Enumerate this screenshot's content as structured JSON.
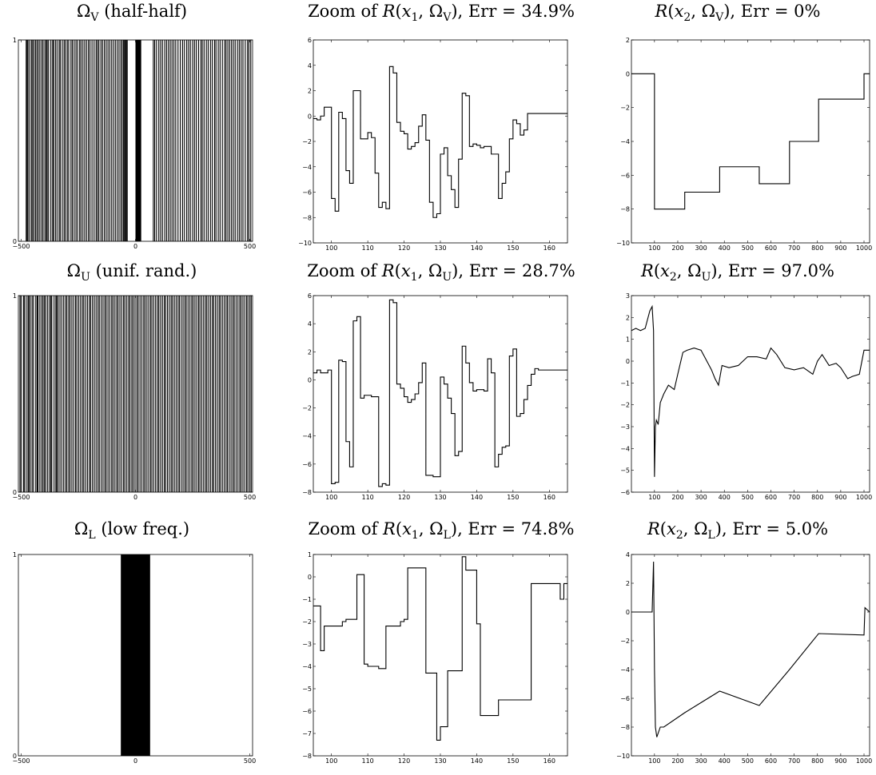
{
  "figure": {
    "titles": [
      [
        "Ω",
        "V",
        "(half-half)"
      ],
      [
        "Zoom of R(x",
        "1",
        ", Ω",
        "V",
        "), Err = 34.9%"
      ],
      [
        "R(x",
        "2",
        ", Ω",
        "V",
        "), Err = 0%"
      ],
      [
        "Ω",
        "U",
        "(unif. rand.)"
      ],
      [
        "Zoom of R(x",
        "1",
        ", Ω",
        "U",
        "), Err = 28.7%"
      ],
      [
        "R(x",
        "2",
        ", Ω",
        "U",
        "), Err = 97.0%"
      ],
      [
        "Ω",
        "L",
        "(low freq.)"
      ],
      [
        "Zoom of R(x",
        "1",
        ", Ω",
        "L",
        "), Err = 74.8%"
      ],
      [
        "R(x",
        "2",
        ", Ω",
        "L",
        "), Err = 5.0%"
      ]
    ]
  },
  "chart_data": [
    {
      "id": "mask_V",
      "type": "line",
      "style": "mask",
      "title": "ΩV (half-half)",
      "xlim": [
        -512,
        512
      ],
      "ylim": [
        0,
        1
      ],
      "xticks": [
        -500,
        0,
        500
      ],
      "yticks": [
        0,
        1
      ],
      "mask_lines": [
        -478,
        -474,
        -470,
        -463,
        -455,
        -450,
        -444,
        -437,
        -431,
        -425,
        -418,
        -410,
        -404,
        -396,
        -390,
        -386,
        -380,
        -370,
        -362,
        -358,
        -350,
        -343,
        -334,
        -329,
        -320,
        -312,
        -306,
        -298,
        -292,
        -282,
        -276,
        -268,
        -260,
        -253,
        -244,
        -238,
        -230,
        -222,
        -214,
        -206,
        -199,
        -190,
        -181,
        -172,
        -166,
        -160,
        -151,
        -144,
        -136,
        -128,
        -120,
        -112,
        -104,
        -96,
        -88,
        -80,
        -72,
        -64,
        -58,
        -52,
        -48,
        -44,
        -40,
        -36,
        78,
        84,
        92,
        102,
        110,
        118,
        128,
        136,
        144,
        152,
        160,
        168,
        176,
        186,
        196,
        206,
        214,
        224,
        232,
        240,
        250,
        258,
        266,
        276,
        286,
        292,
        300,
        310,
        318,
        328,
        336,
        346,
        352,
        362,
        370,
        380,
        390,
        396,
        404,
        412,
        420,
        428,
        436,
        446,
        454,
        462,
        470,
        480,
        490,
        496,
        504
      ],
      "mask_band": [
        0,
        25
      ]
    },
    {
      "id": "zoom_V",
      "type": "line",
      "style": "step",
      "title": "Zoom of R(x1, ΩV), Err = 34.9%",
      "xlim": [
        95,
        165
      ],
      "ylim": [
        -10,
        6
      ],
      "xticks": [
        100,
        110,
        120,
        130,
        140,
        150,
        160
      ],
      "yticks": [
        -10,
        -8,
        -6,
        -4,
        -2,
        0,
        2,
        4,
        6
      ],
      "x": [
        95,
        96,
        97,
        98,
        100,
        101,
        102,
        103,
        104,
        105,
        106,
        107,
        108,
        110,
        111,
        112,
        113,
        114,
        115,
        116,
        117,
        118,
        119,
        120,
        121,
        122,
        123,
        124,
        125,
        126,
        127,
        128,
        129,
        130,
        131,
        132,
        133,
        134,
        135,
        136,
        137,
        138,
        139,
        140,
        141,
        142,
        144,
        146,
        147,
        148,
        149,
        150,
        151,
        152,
        153,
        154,
        155,
        156,
        158,
        160,
        165
      ],
      "y": [
        -0.2,
        -0.3,
        0.0,
        0.7,
        -6.5,
        -7.5,
        0.3,
        -0.2,
        -4.3,
        -5.3,
        2.0,
        2.0,
        -1.8,
        -1.3,
        -1.7,
        -4.5,
        -7.2,
        -6.8,
        -7.3,
        3.9,
        3.4,
        -0.5,
        -1.2,
        -1.4,
        -2.6,
        -2.4,
        -2.1,
        -0.8,
        0.1,
        -1.9,
        -6.8,
        -8.0,
        -7.7,
        -3.0,
        -2.5,
        -4.7,
        -5.8,
        -7.2,
        -3.4,
        1.8,
        1.6,
        -2.4,
        -2.2,
        -2.3,
        -2.5,
        -2.4,
        -3.0,
        -6.5,
        -5.3,
        -4.4,
        -1.8,
        -0.3,
        -0.6,
        -1.5,
        -1.1,
        0.2,
        0.2,
        0.2,
        0.2,
        0.2,
        0.2
      ]
    },
    {
      "id": "full_V",
      "type": "line",
      "style": "step",
      "title": "R(x2, ΩV), Err = 0%",
      "xlim": [
        1,
        1024
      ],
      "ylim": [
        -10,
        2
      ],
      "xticks": [
        100,
        200,
        300,
        400,
        500,
        600,
        700,
        800,
        900,
        1000
      ],
      "yticks": [
        -10,
        -8,
        -6,
        -4,
        -2,
        0,
        2
      ],
      "x": [
        1,
        100,
        230,
        380,
        550,
        680,
        805,
        1000,
        1024
      ],
      "y": [
        0,
        -8,
        -7,
        -5.5,
        -6.5,
        -4,
        -1.5,
        0,
        0
      ]
    },
    {
      "id": "mask_U",
      "type": "line",
      "style": "mask",
      "title": "ΩU (unif. rand.)",
      "xlim": [
        -512,
        512
      ],
      "ylim": [
        0,
        1
      ],
      "xticks": [
        -500,
        0,
        500
      ],
      "yticks": [
        0,
        1
      ],
      "mask_lines": [
        -505,
        -500,
        -490,
        -486,
        -478,
        -470,
        -466,
        -460,
        -452,
        -446,
        -436,
        -430,
        -426,
        -418,
        -410,
        -404,
        -398,
        -392,
        -384,
        -376,
        -370,
        -366,
        -356,
        -348,
        -344,
        -338,
        -330,
        -322,
        -314,
        -306,
        -300,
        -292,
        -286,
        -278,
        -270,
        -262,
        -256,
        -248,
        -240,
        -232,
        -226,
        -218,
        -210,
        -202,
        -196,
        -188,
        -180,
        -172,
        -164,
        -158,
        -150,
        -142,
        -134,
        -128,
        -120,
        -112,
        -104,
        -98,
        -90,
        -82,
        -76,
        -68,
        -60,
        -52,
        -46,
        -38,
        -30,
        -24,
        -16,
        -10,
        -2,
        6,
        12,
        20,
        28,
        36,
        42,
        50,
        58,
        66,
        72,
        80,
        88,
        96,
        102,
        110,
        118,
        126,
        132,
        140,
        148,
        156,
        162,
        170,
        178,
        186,
        192,
        200,
        208,
        216,
        222,
        230,
        238,
        246,
        252,
        260,
        268,
        276,
        282,
        290,
        298,
        306,
        312,
        320,
        328,
        336,
        342,
        350,
        358,
        366,
        372,
        380,
        388,
        396,
        402,
        410,
        418,
        426,
        432,
        440,
        448,
        456,
        462,
        470,
        478,
        486,
        492,
        500,
        506
      ],
      "mask_band": null
    },
    {
      "id": "zoom_U",
      "type": "line",
      "style": "step",
      "title": "Zoom of R(x1, ΩU), Err = 28.7%",
      "xlim": [
        95,
        165
      ],
      "ylim": [
        -8,
        6
      ],
      "xticks": [
        100,
        110,
        120,
        130,
        140,
        150,
        160
      ],
      "yticks": [
        -8,
        -6,
        -4,
        -2,
        0,
        2,
        4,
        6
      ],
      "x": [
        95,
        96,
        97,
        99,
        100,
        101,
        102,
        103,
        104,
        105,
        106,
        107,
        108,
        109,
        110,
        111,
        113,
        114,
        115,
        116,
        117,
        118,
        119,
        120,
        121,
        122,
        123,
        124,
        125,
        126,
        127,
        128,
        130,
        131,
        132,
        133,
        134,
        135,
        136,
        137,
        138,
        139,
        140,
        142,
        143,
        144,
        145,
        146,
        147,
        148,
        149,
        150,
        151,
        152,
        153,
        154,
        155,
        156,
        157,
        158,
        160,
        165
      ],
      "y": [
        0.5,
        0.7,
        0.5,
        0.7,
        -7.4,
        -7.3,
        1.4,
        1.3,
        -4.4,
        -6.2,
        4.2,
        4.5,
        -1.3,
        -1.1,
        -1.1,
        -1.2,
        -7.6,
        -7.4,
        -7.5,
        5.7,
        5.5,
        -0.3,
        -0.6,
        -1.2,
        -1.6,
        -1.4,
        -1.0,
        -0.2,
        1.2,
        -6.8,
        -6.8,
        -6.9,
        0.2,
        -0.3,
        -1.3,
        -2.4,
        -5.4,
        -5.1,
        2.4,
        1.2,
        -0.2,
        -0.8,
        -0.7,
        -0.8,
        1.5,
        0.5,
        -6.2,
        -5.3,
        -4.8,
        -4.7,
        1.7,
        2.2,
        -2.6,
        -2.4,
        -1.4,
        -0.4,
        0.4,
        0.8,
        0.7,
        0.7,
        0.7,
        0.7
      ]
    },
    {
      "id": "full_U",
      "type": "line",
      "style": "noisy",
      "title": "R(x2, ΩU), Err = 97.0%",
      "xlim": [
        1,
        1024
      ],
      "ylim": [
        -6,
        3
      ],
      "xticks": [
        100,
        200,
        300,
        400,
        500,
        600,
        700,
        800,
        900,
        1000
      ],
      "yticks": [
        -6,
        -5,
        -4,
        -3,
        -2,
        -1,
        0,
        1,
        2,
        3
      ],
      "x": [
        1,
        20,
        40,
        60,
        80,
        90,
        96,
        100,
        104,
        108,
        116,
        125,
        140,
        160,
        185,
        200,
        222,
        240,
        270,
        300,
        330,
        345,
        360,
        375,
        390,
        420,
        460,
        500,
        540,
        580,
        600,
        625,
        660,
        700,
        740,
        780,
        800,
        820,
        850,
        880,
        900,
        930,
        950,
        980,
        1000,
        1024
      ],
      "y": [
        1.4,
        1.5,
        1.4,
        1.5,
        2.3,
        2.5,
        1.4,
        -5.3,
        -3.0,
        -2.7,
        -2.9,
        -1.9,
        -1.5,
        -1.1,
        -1.3,
        -0.6,
        0.4,
        0.5,
        0.6,
        0.5,
        -0.1,
        -0.4,
        -0.8,
        -1.1,
        -0.2,
        -0.3,
        -0.2,
        0.2,
        0.2,
        0.1,
        0.6,
        0.3,
        -0.3,
        -0.4,
        -0.3,
        -0.6,
        0.0,
        0.3,
        -0.2,
        -0.1,
        -0.3,
        -0.8,
        -0.7,
        -0.6,
        0.5,
        0.5
      ]
    },
    {
      "id": "mask_L",
      "type": "line",
      "style": "mask",
      "title": "ΩL (low freq.)",
      "xlim": [
        -512,
        512
      ],
      "ylim": [
        0,
        1
      ],
      "xticks": [
        -500,
        0,
        500
      ],
      "yticks": [
        0,
        1
      ],
      "mask_lines": [],
      "mask_band": [
        -64,
        64
      ]
    },
    {
      "id": "zoom_L",
      "type": "line",
      "style": "step",
      "title": "Zoom of R(x1, ΩL), Err = 74.8%",
      "xlim": [
        95,
        165
      ],
      "ylim": [
        -8,
        1
      ],
      "xticks": [
        100,
        110,
        120,
        130,
        140,
        150,
        160
      ],
      "yticks": [
        -8,
        -7,
        -6,
        -5,
        -4,
        -3,
        -2,
        -1,
        0,
        1
      ],
      "x": [
        95,
        97,
        98,
        103,
        104,
        107,
        108,
        109,
        110,
        113,
        115,
        119,
        120,
        121,
        124,
        126,
        127,
        129,
        130,
        131,
        132,
        135,
        136,
        137,
        139,
        140,
        141,
        146,
        149,
        155,
        160,
        163,
        164,
        165
      ],
      "y": [
        -1.3,
        -3.3,
        -2.2,
        -2.0,
        -1.9,
        0.1,
        0.1,
        -3.9,
        -4.0,
        -4.1,
        -2.2,
        -2.0,
        -1.9,
        0.4,
        0.4,
        -4.3,
        -4.3,
        -7.3,
        -6.7,
        -6.7,
        -4.2,
        -4.2,
        0.9,
        0.3,
        0.3,
        -2.1,
        -6.2,
        -5.5,
        -5.5,
        -0.3,
        -0.3,
        -1.0,
        -0.3,
        -0.3
      ]
    },
    {
      "id": "full_L",
      "type": "line",
      "style": "noisy",
      "title": "R(x2, ΩL), Err = 5.0%",
      "xlim": [
        1,
        1024
      ],
      "ylim": [
        -10,
        4
      ],
      "xticks": [
        100,
        200,
        300,
        400,
        500,
        600,
        700,
        800,
        900,
        1000
      ],
      "yticks": [
        -10,
        -8,
        -6,
        -4,
        -2,
        0,
        2,
        4
      ],
      "x": [
        1,
        90,
        96,
        100,
        104,
        110,
        125,
        140,
        230,
        380,
        550,
        680,
        805,
        1000,
        1004,
        1024
      ],
      "y": [
        0,
        0,
        3.5,
        -4.0,
        -8.0,
        -8.7,
        -8.0,
        -8.0,
        -7.0,
        -5.5,
        -6.5,
        -4.0,
        -1.5,
        -1.6,
        0.3,
        0.0
      ]
    }
  ]
}
